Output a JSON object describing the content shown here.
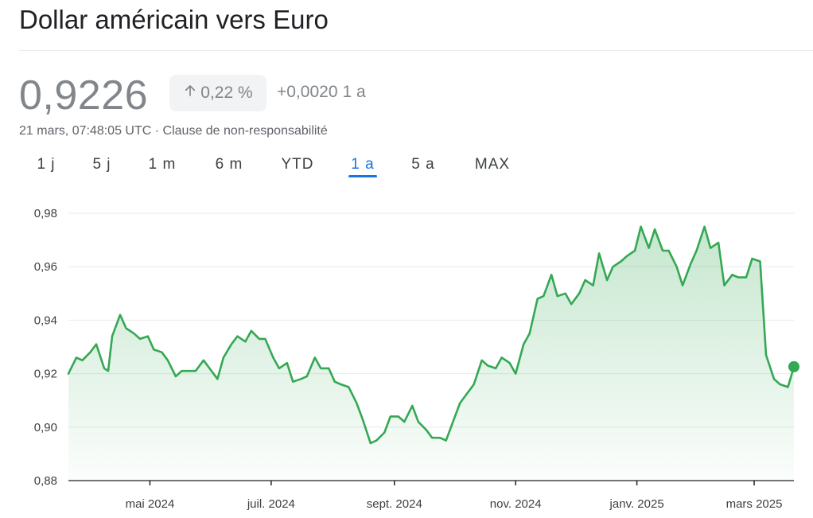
{
  "header": {
    "title": "Dollar américain vers Euro"
  },
  "quote": {
    "price": "0,9226",
    "badge_percent": "0,22 %",
    "change_abs": "+0,0020",
    "change_period": "1 a",
    "timestamp": "21 mars, 07:48:05 UTC",
    "separator": "·",
    "disclaimer": "Clause de non-responsabilité"
  },
  "tabs": [
    {
      "label": "1 j",
      "active": false
    },
    {
      "label": "5 j",
      "active": false
    },
    {
      "label": "1 m",
      "active": false
    },
    {
      "label": "6 m",
      "active": false
    },
    {
      "label": "YTD",
      "active": false
    },
    {
      "label": "1 a",
      "active": true
    },
    {
      "label": "5 a",
      "active": false
    },
    {
      "label": "MAX",
      "active": false
    }
  ],
  "colors": {
    "line": "#34a853",
    "fill": "#34a853",
    "grid": "#e8eaed",
    "axis": "#202124",
    "tick_text": "#3c4043",
    "accent": "#1a73e8"
  },
  "icons": {
    "badge": "arrow-up-icon"
  },
  "chart_data": {
    "type": "area",
    "title": "",
    "xlabel": "",
    "ylabel": "",
    "ylim": [
      0.88,
      0.98
    ],
    "yticks": [
      0.88,
      0.9,
      0.92,
      0.94,
      0.96,
      0.98
    ],
    "ytick_labels": [
      "0,88",
      "0,90",
      "0,92",
      "0,94",
      "0,96",
      "0,98"
    ],
    "xlim": [
      "2024-03-21",
      "2025-03-21"
    ],
    "xticks": [
      {
        "date": "2024-05-01",
        "label": "mai 2024"
      },
      {
        "date": "2024-07-01",
        "label": "juil. 2024"
      },
      {
        "date": "2024-09-01",
        "label": "sept. 2024"
      },
      {
        "date": "2024-11-01",
        "label": "nov. 2024"
      },
      {
        "date": "2025-01-01",
        "label": "janv. 2025"
      },
      {
        "date": "2025-03-01",
        "label": "mars 2025"
      }
    ],
    "grid": true,
    "series": [
      {
        "x": [
          "2024-03-21",
          "2024-03-25",
          "2024-03-28",
          "2024-04-01",
          "2024-04-04",
          "2024-04-08",
          "2024-04-10",
          "2024-04-12",
          "2024-04-16",
          "2024-04-19",
          "2024-04-23",
          "2024-04-26",
          "2024-04-30",
          "2024-05-03",
          "2024-05-07",
          "2024-05-10",
          "2024-05-14",
          "2024-05-17",
          "2024-05-21",
          "2024-05-24",
          "2024-05-28",
          "2024-05-31",
          "2024-06-04",
          "2024-06-07",
          "2024-06-11",
          "2024-06-14",
          "2024-06-18",
          "2024-06-21",
          "2024-06-25",
          "2024-06-28",
          "2024-07-02",
          "2024-07-05",
          "2024-07-09",
          "2024-07-12",
          "2024-07-16",
          "2024-07-19",
          "2024-07-23",
          "2024-07-26",
          "2024-07-30",
          "2024-08-02",
          "2024-08-05",
          "2024-08-09",
          "2024-08-13",
          "2024-08-16",
          "2024-08-20",
          "2024-08-23",
          "2024-08-27",
          "2024-08-30",
          "2024-09-03",
          "2024-09-06",
          "2024-09-10",
          "2024-09-13",
          "2024-09-17",
          "2024-09-20",
          "2024-09-24",
          "2024-09-27",
          "2024-10-01",
          "2024-10-04",
          "2024-10-08",
          "2024-10-11",
          "2024-10-15",
          "2024-10-18",
          "2024-10-22",
          "2024-10-25",
          "2024-10-29",
          "2024-11-01",
          "2024-11-05",
          "2024-11-08",
          "2024-11-12",
          "2024-11-15",
          "2024-11-19",
          "2024-11-22",
          "2024-11-26",
          "2024-11-29",
          "2024-12-03",
          "2024-12-06",
          "2024-12-10",
          "2024-12-13",
          "2024-12-17",
          "2024-12-20",
          "2024-12-24",
          "2024-12-27",
          "2024-12-31",
          "2025-01-03",
          "2025-01-07",
          "2025-01-10",
          "2025-01-14",
          "2025-01-17",
          "2025-01-21",
          "2025-01-24",
          "2025-01-28",
          "2025-01-31",
          "2025-02-04",
          "2025-02-07",
          "2025-02-11",
          "2025-02-14",
          "2025-02-18",
          "2025-02-21",
          "2025-02-25",
          "2025-02-28",
          "2025-03-04",
          "2025-03-07",
          "2025-03-11",
          "2025-03-14",
          "2025-03-18",
          "2025-03-21"
        ],
        "y": [
          0.92,
          0.926,
          0.925,
          0.928,
          0.931,
          0.922,
          0.921,
          0.934,
          0.942,
          0.937,
          0.935,
          0.933,
          0.934,
          0.929,
          0.928,
          0.925,
          0.919,
          0.921,
          0.921,
          0.921,
          0.925,
          0.922,
          0.918,
          0.926,
          0.931,
          0.934,
          0.932,
          0.936,
          0.933,
          0.933,
          0.926,
          0.922,
          0.924,
          0.917,
          0.918,
          0.919,
          0.926,
          0.922,
          0.922,
          0.917,
          0.916,
          0.915,
          0.909,
          0.903,
          0.894,
          0.895,
          0.898,
          0.904,
          0.904,
          0.902,
          0.908,
          0.902,
          0.899,
          0.896,
          0.896,
          0.895,
          0.903,
          0.909,
          0.913,
          0.916,
          0.925,
          0.923,
          0.922,
          0.926,
          0.924,
          0.92,
          0.931,
          0.935,
          0.948,
          0.949,
          0.957,
          0.949,
          0.95,
          0.946,
          0.95,
          0.955,
          0.953,
          0.965,
          0.955,
          0.96,
          0.962,
          0.964,
          0.966,
          0.975,
          0.967,
          0.974,
          0.966,
          0.966,
          0.96,
          0.953,
          0.961,
          0.966,
          0.975,
          0.967,
          0.969,
          0.953,
          0.957,
          0.956,
          0.956,
          0.963,
          0.962,
          0.927,
          0.918,
          0.916,
          0.915,
          0.9226
        ]
      }
    ]
  }
}
